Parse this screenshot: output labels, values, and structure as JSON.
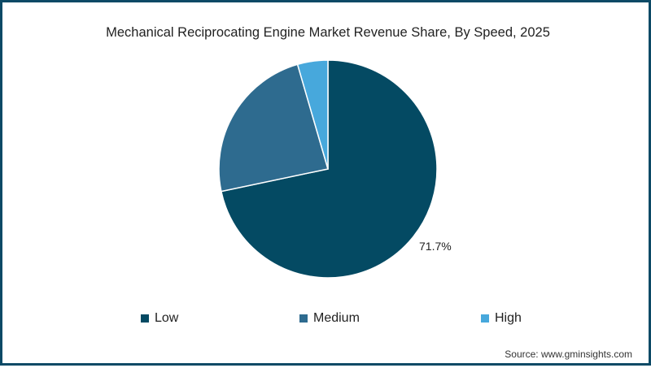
{
  "chart_data": {
    "type": "pie",
    "title": "Mechanical Reciprocating Engine Market Revenue Share, By Speed, 2025",
    "categories": [
      "Low",
      "Medium",
      "High"
    ],
    "values": [
      71.7,
      23.8,
      4.5
    ],
    "colors": [
      "#044a63",
      "#2e6b8f",
      "#47a8dc"
    ],
    "data_labels": [
      {
        "category": "Low",
        "text": "71.7%"
      }
    ],
    "legend_position": "bottom",
    "start_angle": "12 o'clock, clockwise"
  },
  "header": {
    "title": "Mechanical Reciprocating Engine Market Revenue Share, By Speed, 2025"
  },
  "labels": {
    "low_pct": "71.7%"
  },
  "legend": {
    "items": [
      {
        "label": "Low",
        "color": "#044a63"
      },
      {
        "label": "Medium",
        "color": "#2e6b8f"
      },
      {
        "label": "High",
        "color": "#47a8dc"
      }
    ]
  },
  "footer": {
    "source": "Source: www.gminsights.com"
  },
  "colors": {
    "border": "#0d4a66"
  }
}
